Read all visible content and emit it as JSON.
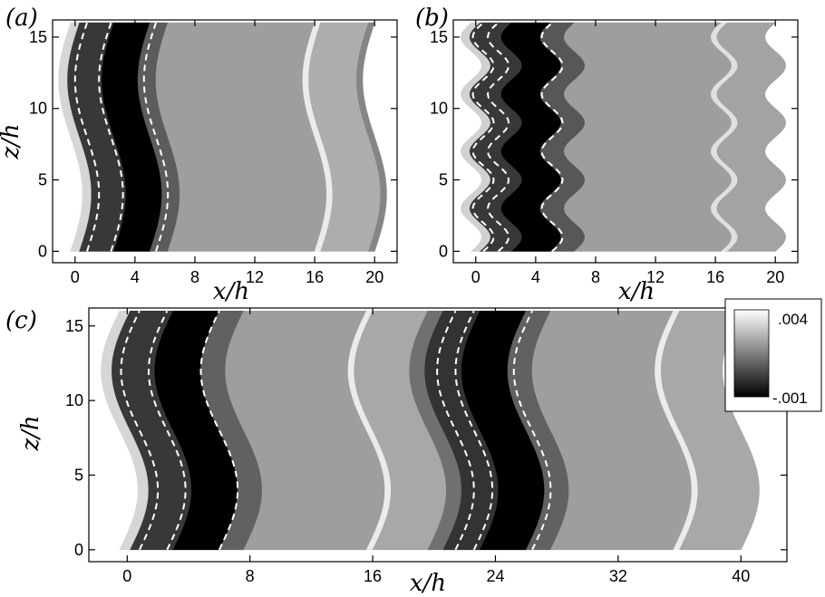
{
  "chart_data": [
    {
      "type": "heatmap",
      "panel_label": "(a)",
      "xlabel": "x/h",
      "ylabel": "z/h",
      "xlim": [
        -1.5,
        21.5
      ],
      "ylim": [
        -0.8,
        16.2
      ],
      "x_ticks": [
        0,
        4,
        8,
        12,
        16,
        20
      ],
      "x_tick_labels": [
        "0",
        "4",
        "8",
        "12",
        "16",
        "20"
      ],
      "y_ticks": [
        0,
        5,
        10,
        15
      ],
      "y_tick_labels": [
        "0",
        "5",
        "10",
        "15"
      ],
      "domain_x": [
        0,
        20
      ],
      "domain_z": [
        0,
        16
      ],
      "wave": {
        "amplitude": 0.8,
        "period": 16,
        "phase_z": 4
      },
      "bands": [
        {
          "x0": -0.3,
          "x1": 0.3,
          "value": 0.0032
        },
        {
          "x0": 0.3,
          "x1": 2.6,
          "value": 0.0001
        },
        {
          "x0": 2.6,
          "x1": 5.0,
          "value": -0.001
        },
        {
          "x0": 5.0,
          "x1": 6.2,
          "value": 0.0008
        },
        {
          "x0": 6.2,
          "x1": 16.0,
          "value": 0.0021
        },
        {
          "x0": 16.0,
          "x1": 16.4,
          "value": 0.0036
        },
        {
          "x0": 16.4,
          "x1": 19.6,
          "value": 0.0024
        },
        {
          "x0": 19.6,
          "x1": 20.0,
          "value": 0.0016
        }
      ],
      "zero_contours": [
        0.8,
        2.4,
        5.4
      ]
    },
    {
      "type": "heatmap",
      "panel_label": "(b)",
      "xlabel": "x/h",
      "ylabel": "",
      "xlim": [
        -1.5,
        21.5
      ],
      "ylim": [
        -0.8,
        16.2
      ],
      "x_ticks": [
        0,
        4,
        8,
        12,
        16,
        20
      ],
      "x_tick_labels": [
        "0",
        "4",
        "8",
        "12",
        "16",
        "20"
      ],
      "y_ticks": [
        0,
        5,
        10,
        15
      ],
      "y_tick_labels": [
        "0",
        "5",
        "10",
        "15"
      ],
      "domain_x": [
        0,
        20
      ],
      "domain_z": [
        0,
        16
      ],
      "wave": {
        "amplitude": 0.7,
        "period": 4,
        "phase_z": 1
      },
      "bands": [
        {
          "x0": -0.3,
          "x1": 0.3,
          "value": 0.0031
        },
        {
          "x0": 0.3,
          "x1": 2.4,
          "value": 0.0001
        },
        {
          "x0": 2.4,
          "x1": 5.0,
          "value": -0.001
        },
        {
          "x0": 5.0,
          "x1": 6.6,
          "value": 0.0007
        },
        {
          "x0": 6.6,
          "x1": 16.4,
          "value": 0.0021
        },
        {
          "x0": 16.4,
          "x1": 16.8,
          "value": 0.0034
        },
        {
          "x0": 16.8,
          "x1": 20.0,
          "value": 0.0022
        }
      ],
      "zero_contours": [
        0.5,
        1.5,
        5.1
      ]
    },
    {
      "type": "heatmap",
      "panel_label": "(c)",
      "xlabel": "x/h",
      "ylabel": "z/h",
      "xlim": [
        -2.5,
        43
      ],
      "ylim": [
        -0.8,
        16.2
      ],
      "x_ticks": [
        0,
        8,
        16,
        24,
        32,
        40
      ],
      "x_tick_labels": [
        "0",
        "8",
        "16",
        "24",
        "32",
        "40"
      ],
      "y_ticks": [
        0,
        5,
        10,
        15
      ],
      "y_tick_labels": [
        "0",
        "5",
        "10",
        "15"
      ],
      "domain_x": [
        0,
        40
      ],
      "domain_z": [
        0,
        16
      ],
      "wave": {
        "amplitude": 1.2,
        "period": 16,
        "phase_z": 4
      },
      "bands": [
        {
          "x0": -0.5,
          "x1": 0.2,
          "value": 0.0032
        },
        {
          "x0": 0.2,
          "x1": 3.0,
          "value": 0.0001
        },
        {
          "x0": 3.0,
          "x1": 6.0,
          "value": -0.001
        },
        {
          "x0": 6.0,
          "x1": 7.6,
          "value": 0.0009
        },
        {
          "x0": 7.6,
          "x1": 15.6,
          "value": 0.0021
        },
        {
          "x0": 15.6,
          "x1": 16.0,
          "value": 0.0036
        },
        {
          "x0": 16.0,
          "x1": 19.6,
          "value": 0.0023
        },
        {
          "x0": 19.6,
          "x1": 20.6,
          "value": 0.0012
        },
        {
          "x0": 20.6,
          "x1": 23.0,
          "value": 0.0
        },
        {
          "x0": 23.0,
          "x1": 26.0,
          "value": -0.001
        },
        {
          "x0": 26.0,
          "x1": 27.6,
          "value": 0.0009
        },
        {
          "x0": 27.6,
          "x1": 35.6,
          "value": 0.0021
        },
        {
          "x0": 35.6,
          "x1": 36.0,
          "value": 0.0036
        },
        {
          "x0": 36.0,
          "x1": 40.0,
          "value": 0.0023
        }
      ],
      "zero_contours": [
        0.8,
        2.6,
        6.0,
        21.4,
        22.6,
        26.4
      ]
    }
  ],
  "colorbar": {
    "max_label": ".004",
    "min_label": "-.001",
    "vmin": -0.001,
    "vmax": 0.004,
    "colormap": "grayscale"
  },
  "colors": {
    "contour": "#ffffff",
    "frame": "#000000",
    "background": "#ffffff"
  }
}
